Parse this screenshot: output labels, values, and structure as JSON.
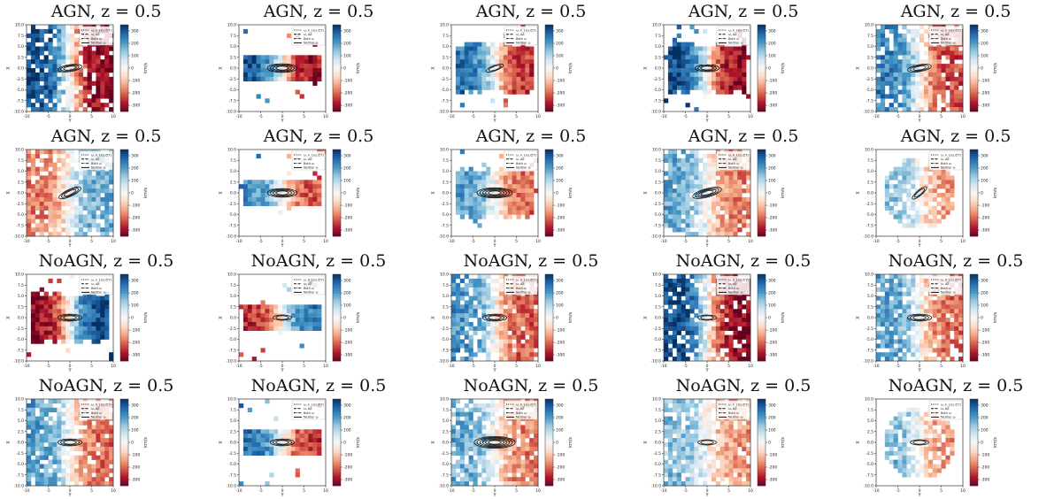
{
  "chart_data": {
    "type": "heatmap",
    "layout": "grid of velocity maps, 4 rows by 5 columns",
    "axes": {
      "xlabel": "Y",
      "ylabel": "X",
      "xlim": [
        -10,
        10
      ],
      "ylim": [
        -10,
        10
      ],
      "xticks": [
        "-10",
        "-5",
        "0",
        "5",
        "10"
      ],
      "yticks": [
        "10.0",
        "7.5",
        "5.0",
        "2.5",
        "0.0",
        "-2.5",
        "-5.0",
        "-7.5",
        "-10.0"
      ]
    },
    "colorbar": {
      "label": "km/s",
      "range": [
        -350,
        350
      ],
      "ticks": [
        "300",
        "200",
        "100",
        "0",
        "-100",
        "-200",
        "-300"
      ],
      "cmap_colors": [
        "#67001f",
        "#b2182b",
        "#d6604d",
        "#f4a582",
        "#fddbc7",
        "#f7f7f7",
        "#d1e5f0",
        "#92c5de",
        "#4393c3",
        "#2166ac",
        "#053061"
      ]
    },
    "legend": {
      "position": "top-right",
      "entries": [
        "ω, k_{α},ζ(T)",
        "ω, Δβ",
        "Both ω",
        "Neither ω"
      ]
    },
    "panels": [
      {
        "title": "AGN, z = 0.5",
        "amp": 320,
        "shape": "full",
        "rings": 3,
        "tilt": -8
      },
      {
        "title": "AGN, z = 0.5",
        "amp": 300,
        "shape": "strip",
        "rings": 4,
        "tilt": 0
      },
      {
        "title": "AGN, z = 0.5",
        "amp": 260,
        "shape": "mid",
        "rings": 2,
        "tilt": -20
      },
      {
        "title": "AGN, z = 0.5",
        "amp": 320,
        "shape": "mid",
        "rings": 3,
        "tilt": 0
      },
      {
        "title": "AGN, z = 0.5",
        "amp": 240,
        "shape": "full",
        "rings": 3,
        "tilt": -10
      },
      {
        "title": "AGN, z = 0.5",
        "amp": -180,
        "shape": "full",
        "rings": 3,
        "tilt": -25
      },
      {
        "title": "AGN, z = 0.5",
        "amp": 220,
        "shape": "strip",
        "rings": 4,
        "tilt": 0
      },
      {
        "title": "AGN, z = 0.5",
        "amp": 200,
        "shape": "mid",
        "rings": 5,
        "tilt": 0
      },
      {
        "title": "AGN, z = 0.5",
        "amp": 180,
        "shape": "full",
        "rings": 4,
        "tilt": -15
      },
      {
        "title": "AGN, z = 0.5",
        "amp": 150,
        "shape": "sparse",
        "rings": 2,
        "tilt": -40
      },
      {
        "title": "NoAGN, z = 0.5",
        "amp": -320,
        "shape": "mid",
        "rings": 3,
        "tilt": 0
      },
      {
        "title": "NoAGN, z = 0.5",
        "amp": -260,
        "shape": "strip",
        "rings": 2,
        "tilt": 0
      },
      {
        "title": "NoAGN, z = 0.5",
        "amp": 220,
        "shape": "full",
        "rings": 3,
        "tilt": 0
      },
      {
        "title": "NoAGN, z = 0.5",
        "amp": 320,
        "shape": "full",
        "rings": 2,
        "tilt": 0
      },
      {
        "title": "NoAGN, z = 0.5",
        "amp": 200,
        "shape": "full",
        "rings": 3,
        "tilt": 0
      },
      {
        "title": "NoAGN, z = 0.5",
        "amp": 200,
        "shape": "full",
        "rings": 3,
        "tilt": 0
      },
      {
        "title": "NoAGN, z = 0.5",
        "amp": 260,
        "shape": "strip",
        "rings": 3,
        "tilt": 0
      },
      {
        "title": "NoAGN, z = 0.5",
        "amp": 180,
        "shape": "full",
        "rings": 6,
        "tilt": 0
      },
      {
        "title": "NoAGN, z = 0.5",
        "amp": 150,
        "shape": "full",
        "rings": 2,
        "tilt": 0
      },
      {
        "title": "NoAGN, z = 0.5",
        "amp": 160,
        "shape": "sparse",
        "rings": 2,
        "tilt": 0
      }
    ]
  }
}
